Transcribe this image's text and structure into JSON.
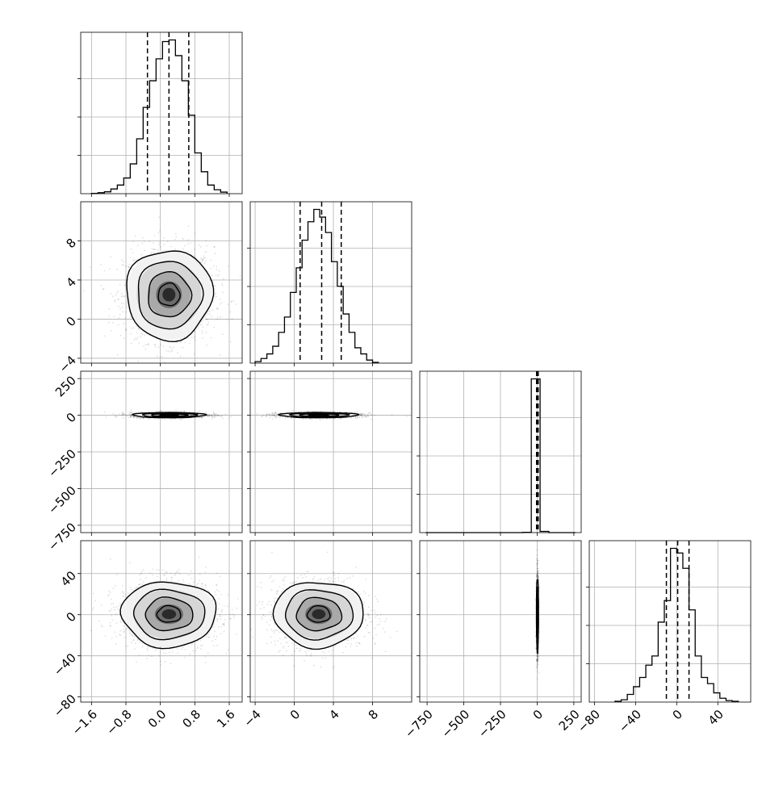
{
  "chart_data": {
    "type": "corner",
    "grid": true,
    "parameters": [
      {
        "range": [
          -1.85,
          1.9
        ],
        "ticks": [
          -1.6,
          -0.8,
          0.0,
          0.8,
          1.6
        ],
        "tick_labels": [
          "−1.6",
          "−0.8",
          "0.0",
          "0.8",
          "1.6"
        ]
      },
      {
        "range": [
          -4.5,
          12.0
        ],
        "ticks": [
          -4,
          0,
          4,
          8
        ],
        "tick_labels": [
          "−4",
          "0",
          "4",
          "8"
        ]
      },
      {
        "range": [
          -800,
          300
        ],
        "ticks": [
          -750,
          -500,
          -250,
          0,
          250
        ],
        "tick_labels": [
          "−750",
          "−500",
          "−250",
          "0",
          "250"
        ]
      },
      {
        "range": [
          -85,
          72
        ],
        "ticks": [
          -80,
          -40,
          0,
          40
        ],
        "tick_labels": [
          "−80",
          "−40",
          "0",
          "40"
        ]
      }
    ],
    "histograms": [
      {
        "param": 0,
        "edges": [
          -1.6,
          -1.45,
          -1.3,
          -1.15,
          -1.0,
          -0.85,
          -0.7,
          -0.55,
          -0.4,
          -0.25,
          -0.1,
          0.05,
          0.2,
          0.35,
          0.5,
          0.65,
          0.8,
          0.95,
          1.1,
          1.25,
          1.4,
          1.55
        ],
        "counts": [
          0.2,
          0.6,
          1.2,
          3.0,
          5.5,
          10.0,
          19.0,
          35.0,
          55.0,
          72.0,
          86.0,
          97.0,
          98.0,
          88.0,
          72.0,
          50.0,
          26.0,
          14.0,
          5.5,
          2.5,
          1.0
        ],
        "quantiles": [
          -0.3,
          0.2,
          0.66
        ]
      },
      {
        "param": 1,
        "edges": [
          -4.0,
          -3.4,
          -2.8,
          -2.2,
          -1.6,
          -1.0,
          -0.4,
          0.2,
          0.8,
          1.4,
          2.0,
          2.6,
          3.2,
          3.8,
          4.4,
          5.0,
          5.6,
          6.2,
          6.8,
          7.4,
          8.0,
          8.6
        ],
        "counts": [
          1.0,
          3.0,
          6.0,
          11.0,
          20.0,
          30.0,
          46.0,
          62.0,
          80.0,
          92.0,
          100.0,
          95.0,
          85.0,
          66.0,
          50.0,
          32.0,
          20.0,
          10.0,
          6.0,
          2.0,
          0.5
        ],
        "quantiles": [
          0.6,
          2.8,
          4.8
        ]
      },
      {
        "param": 2,
        "edges": [
          -760,
          -700,
          -640,
          -580,
          -520,
          -460,
          -400,
          -340,
          -280,
          -220,
          -160,
          -100,
          -40,
          -10,
          20,
          80,
          140,
          200,
          260
        ],
        "counts": [
          0.0,
          0.0,
          0.0,
          0.0,
          0.0,
          0.0,
          0.0,
          0.0,
          0.0,
          0.0,
          0.0,
          0.2,
          100.0,
          100.0,
          0.8,
          0.0,
          0.0,
          0.0
        ],
        "quantiles": [
          -4,
          1,
          7
        ]
      },
      {
        "param": 3,
        "edges": [
          -60,
          -54,
          -48,
          -42,
          -36,
          -30,
          -24,
          -18,
          -12,
          -6,
          0,
          6,
          12,
          18,
          24,
          30,
          36,
          42,
          48,
          54,
          60
        ],
        "counts": [
          0.5,
          1.5,
          5.0,
          10.0,
          16.0,
          24.0,
          30.0,
          52.0,
          66.0,
          100.0,
          97.0,
          87.0,
          60.0,
          30.0,
          16.0,
          12.0,
          6.0,
          2.5,
          1.0,
          0.5
        ],
        "quantiles": [
          -10,
          1,
          12
        ]
      }
    ],
    "pairs": [
      {
        "x": 0,
        "y": 1,
        "center": [
          0.2,
          2.5
        ],
        "sigma": [
          0.5,
          2.3
        ],
        "corr": 0.0
      },
      {
        "x": 0,
        "y": 2,
        "center": [
          0.2,
          1
        ],
        "sigma": [
          0.42,
          9
        ],
        "corr": 0.0
      },
      {
        "x": 1,
        "y": 2,
        "center": [
          2.5,
          1
        ],
        "sigma": [
          2.0,
          9
        ],
        "corr": 0.0
      },
      {
        "x": 0,
        "y": 3,
        "center": [
          0.2,
          0.5
        ],
        "sigma": [
          0.55,
          16
        ],
        "corr": 0.0
      },
      {
        "x": 1,
        "y": 3,
        "center": [
          2.5,
          0.5
        ],
        "sigma": [
          2.3,
          16
        ],
        "corr": 0.0
      },
      {
        "x": 2,
        "y": 3,
        "center": [
          2,
          0.5
        ],
        "sigma": [
          3.5,
          18
        ],
        "corr": 0.0
      }
    ],
    "contour_levels_sigma": [
      0.5,
      1.0,
      1.5,
      2.0
    ]
  }
}
